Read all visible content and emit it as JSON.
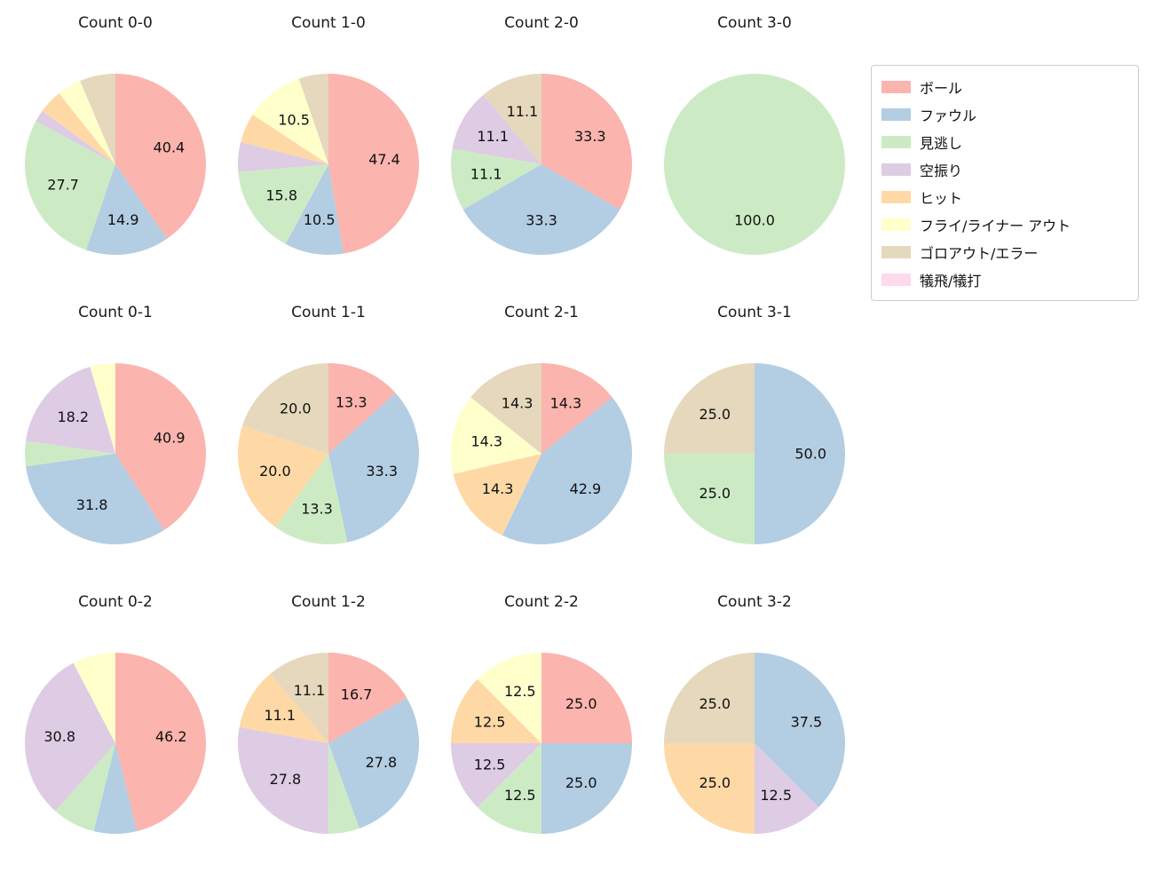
{
  "figure": {
    "background": "#ffffff"
  },
  "legend": {
    "items": [
      {
        "label": "ボール",
        "color": "#fbb4ae"
      },
      {
        "label": "ファウル",
        "color": "#b3cde3"
      },
      {
        "label": "見逃し",
        "color": "#ccebc5"
      },
      {
        "label": "空振り",
        "color": "#decbe4"
      },
      {
        "label": "ヒット",
        "color": "#fed9a6"
      },
      {
        "label": "フライ/ライナー アウト",
        "color": "#ffffcc"
      },
      {
        "label": "ゴロアウト/エラー",
        "color": "#e5d8bd"
      },
      {
        "label": "犠飛/犠打",
        "color": "#fddaec"
      }
    ]
  },
  "chart_data": [
    {
      "type": "pie",
      "title": "Count 0-0",
      "start_angle_deg": 90,
      "direction": "clockwise",
      "slices": [
        {
          "category": "ボール",
          "value": 40.4,
          "label": "40.4"
        },
        {
          "category": "ファウル",
          "value": 14.9,
          "label": "14.9"
        },
        {
          "category": "見逃し",
          "value": 27.7,
          "label": "27.7"
        },
        {
          "category": "空振り",
          "value": 2.1,
          "label": ""
        },
        {
          "category": "ヒット",
          "value": 4.3,
          "label": ""
        },
        {
          "category": "フライ/ライナー アウト",
          "value": 4.3,
          "label": ""
        },
        {
          "category": "ゴロアウト/エラー",
          "value": 6.4,
          "label": ""
        }
      ]
    },
    {
      "type": "pie",
      "title": "Count 1-0",
      "start_angle_deg": 90,
      "direction": "clockwise",
      "slices": [
        {
          "category": "ボール",
          "value": 47.4,
          "label": "47.4"
        },
        {
          "category": "ファウル",
          "value": 10.5,
          "label": "10.5"
        },
        {
          "category": "見逃し",
          "value": 15.8,
          "label": "15.8"
        },
        {
          "category": "空振り",
          "value": 5.3,
          "label": ""
        },
        {
          "category": "ヒット",
          "value": 5.3,
          "label": ""
        },
        {
          "category": "フライ/ライナー アウト",
          "value": 10.5,
          "label": "10.5"
        },
        {
          "category": "ゴロアウト/エラー",
          "value": 5.3,
          "label": ""
        }
      ]
    },
    {
      "type": "pie",
      "title": "Count 2-0",
      "start_angle_deg": 90,
      "direction": "clockwise",
      "slices": [
        {
          "category": "ボール",
          "value": 33.3,
          "label": "33.3"
        },
        {
          "category": "ファウル",
          "value": 33.3,
          "label": "33.3"
        },
        {
          "category": "見逃し",
          "value": 11.1,
          "label": "11.1"
        },
        {
          "category": "空振り",
          "value": 11.1,
          "label": "11.1"
        },
        {
          "category": "ゴロアウト/エラー",
          "value": 11.1,
          "label": "11.1"
        }
      ]
    },
    {
      "type": "pie",
      "title": "Count 3-0",
      "start_angle_deg": 90,
      "direction": "clockwise",
      "slices": [
        {
          "category": "見逃し",
          "value": 100.0,
          "label": "100.0"
        }
      ]
    },
    {
      "type": "pie",
      "title": "Count 0-1",
      "start_angle_deg": 90,
      "direction": "clockwise",
      "slices": [
        {
          "category": "ボール",
          "value": 40.9,
          "label": "40.9"
        },
        {
          "category": "ファウル",
          "value": 31.8,
          "label": "31.8"
        },
        {
          "category": "見逃し",
          "value": 4.5,
          "label": ""
        },
        {
          "category": "空振り",
          "value": 18.2,
          "label": "18.2"
        },
        {
          "category": "フライ/ライナー アウト",
          "value": 4.5,
          "label": ""
        }
      ]
    },
    {
      "type": "pie",
      "title": "Count 1-1",
      "start_angle_deg": 90,
      "direction": "clockwise",
      "slices": [
        {
          "category": "ボール",
          "value": 13.3,
          "label": "13.3"
        },
        {
          "category": "ファウル",
          "value": 33.3,
          "label": "33.3"
        },
        {
          "category": "見逃し",
          "value": 13.3,
          "label": "13.3"
        },
        {
          "category": "ヒット",
          "value": 20.0,
          "label": "20.0"
        },
        {
          "category": "ゴロアウト/エラー",
          "value": 20.0,
          "label": "20.0"
        }
      ]
    },
    {
      "type": "pie",
      "title": "Count 2-1",
      "start_angle_deg": 90,
      "direction": "clockwise",
      "slices": [
        {
          "category": "ボール",
          "value": 14.3,
          "label": "14.3"
        },
        {
          "category": "ファウル",
          "value": 42.9,
          "label": "42.9"
        },
        {
          "category": "ヒット",
          "value": 14.3,
          "label": "14.3"
        },
        {
          "category": "フライ/ライナー アウト",
          "value": 14.3,
          "label": "14.3"
        },
        {
          "category": "ゴロアウト/エラー",
          "value": 14.3,
          "label": "14.3"
        }
      ]
    },
    {
      "type": "pie",
      "title": "Count 3-1",
      "start_angle_deg": 90,
      "direction": "clockwise",
      "slices": [
        {
          "category": "ファウル",
          "value": 50.0,
          "label": "50.0"
        },
        {
          "category": "見逃し",
          "value": 25.0,
          "label": "25.0"
        },
        {
          "category": "ゴロアウト/エラー",
          "value": 25.0,
          "label": "25.0"
        }
      ]
    },
    {
      "type": "pie",
      "title": "Count 0-2",
      "start_angle_deg": 90,
      "direction": "clockwise",
      "slices": [
        {
          "category": "ボール",
          "value": 46.2,
          "label": "46.2"
        },
        {
          "category": "ファウル",
          "value": 7.7,
          "label": ""
        },
        {
          "category": "見逃し",
          "value": 7.7,
          "label": ""
        },
        {
          "category": "空振り",
          "value": 30.8,
          "label": "30.8"
        },
        {
          "category": "フライ/ライナー アウト",
          "value": 7.7,
          "label": ""
        }
      ]
    },
    {
      "type": "pie",
      "title": "Count 1-2",
      "start_angle_deg": 90,
      "direction": "clockwise",
      "slices": [
        {
          "category": "ボール",
          "value": 16.7,
          "label": "16.7"
        },
        {
          "category": "ファウル",
          "value": 27.8,
          "label": "27.8"
        },
        {
          "category": "見逃し",
          "value": 5.6,
          "label": ""
        },
        {
          "category": "空振り",
          "value": 27.8,
          "label": "27.8"
        },
        {
          "category": "ヒット",
          "value": 11.1,
          "label": "11.1"
        },
        {
          "category": "ゴロアウト/エラー",
          "value": 11.1,
          "label": "11.1"
        }
      ]
    },
    {
      "type": "pie",
      "title": "Count 2-2",
      "start_angle_deg": 90,
      "direction": "clockwise",
      "slices": [
        {
          "category": "ボール",
          "value": 25.0,
          "label": "25.0"
        },
        {
          "category": "ファウル",
          "value": 25.0,
          "label": "25.0"
        },
        {
          "category": "見逃し",
          "value": 12.5,
          "label": "12.5"
        },
        {
          "category": "空振り",
          "value": 12.5,
          "label": "12.5"
        },
        {
          "category": "ヒット",
          "value": 12.5,
          "label": "12.5"
        },
        {
          "category": "フライ/ライナー アウト",
          "value": 12.5,
          "label": "12.5"
        }
      ]
    },
    {
      "type": "pie",
      "title": "Count 3-2",
      "start_angle_deg": 90,
      "direction": "clockwise",
      "slices": [
        {
          "category": "ファウル",
          "value": 37.5,
          "label": "37.5"
        },
        {
          "category": "空振り",
          "value": 12.5,
          "label": "12.5"
        },
        {
          "category": "ヒット",
          "value": 25.0,
          "label": "25.0"
        },
        {
          "category": "ゴロアウト/エラー",
          "value": 25.0,
          "label": "25.0"
        }
      ]
    }
  ]
}
